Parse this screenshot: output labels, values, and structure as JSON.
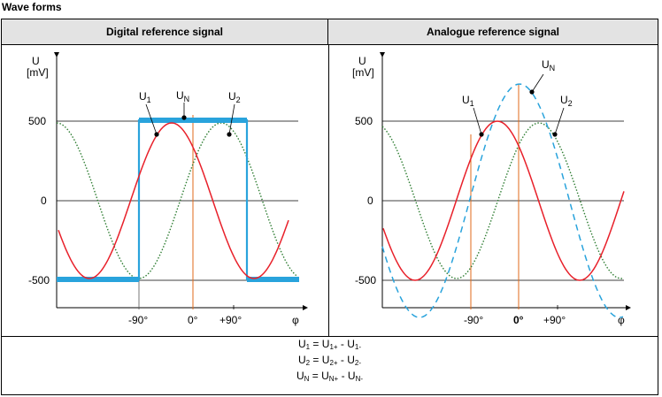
{
  "title": "Wave forms",
  "panels": {
    "digital": {
      "header": "Digital reference signal"
    },
    "analogue": {
      "header": "Analogue reference signal"
    }
  },
  "axes": {
    "y_label": "U",
    "y_unit": "[mV]",
    "y_ticks": [
      "500",
      "0",
      "-500"
    ],
    "x_ticks": [
      "-90°",
      "0°",
      "+90°"
    ],
    "x_label": "φ"
  },
  "curve_labels": {
    "u1": "U",
    "u1_sub": "1",
    "un": "U",
    "un_sub": "N",
    "u2": "U",
    "u2_sub": "2"
  },
  "formulas": [
    {
      "lhs": "U",
      "lhs_sub": "1",
      "eq": " = ",
      "a": "U",
      "a_sub": "1+",
      "op": " - ",
      "b": "U",
      "b_sub": "1-"
    },
    {
      "lhs": "U",
      "lhs_sub": "2",
      "eq": " = ",
      "a": "U",
      "a_sub": "2+",
      "op": " - ",
      "b": "U",
      "b_sub": "2-"
    },
    {
      "lhs": "U",
      "lhs_sub": "N",
      "eq": " = ",
      "a": "U",
      "a_sub": "N+",
      "op": " - ",
      "b": "U",
      "b_sub": "N-"
    }
  ],
  "colors": {
    "u1": "#e8202a",
    "u2": "#2e7d32",
    "un": "#29a3dc",
    "marker": "#e06a1a",
    "axis": "#000000",
    "header_bg": "#e3e3e3"
  }
}
